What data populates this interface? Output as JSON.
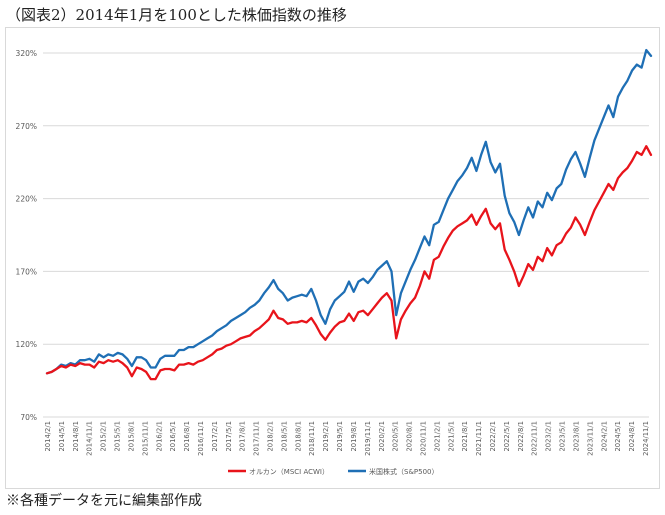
{
  "title": "（図表2）2014年1月を100とした株価指数の推移",
  "footnote": "※各種データを元に編集部作成",
  "chart_data": {
    "type": "line",
    "title": "",
    "xlabel": "",
    "ylabel": "",
    "ylim": [
      70,
      320
    ],
    "y_ticks": [
      70,
      120,
      170,
      220,
      270,
      320
    ],
    "y_tick_labels": [
      "70%",
      "120%",
      "170%",
      "220%",
      "270%",
      "320%"
    ],
    "x_tick_labels": [
      "2014/2/1",
      "2014/5/1",
      "2014/8/1",
      "2014/11/1",
      "2015/2/1",
      "2015/5/1",
      "2015/8/1",
      "2015/11/1",
      "2016/2/1",
      "2016/5/1",
      "2016/8/1",
      "2016/11/1",
      "2017/2/1",
      "2017/5/1",
      "2017/8/1",
      "2017/11/1",
      "2018/2/1",
      "2018/5/1",
      "2018/8/1",
      "2018/11/1",
      "2019/2/1",
      "2019/5/1",
      "2019/8/1",
      "2019/11/1",
      "2020/2/1",
      "2020/5/1",
      "2020/8/1",
      "2020/11/1",
      "2021/2/1",
      "2021/5/1",
      "2021/8/1",
      "2021/11/1",
      "2022/2/1",
      "2022/5/1",
      "2022/8/1",
      "2022/11/1",
      "2023/2/1",
      "2023/5/1",
      "2023/8/1",
      "2023/11/1",
      "2024/2/1",
      "2024/5/1",
      "2024/8/1",
      "2024/11/1"
    ],
    "grid": true,
    "legend_position": "bottom",
    "series": [
      {
        "name": "オルカン（MSCI ACWI）",
        "color": "#e8141b",
        "values": [
          100,
          101,
          103,
          105,
          104,
          106,
          105,
          107,
          106,
          106,
          104,
          108,
          107,
          109,
          108,
          109,
          107,
          104,
          98,
          104,
          103,
          101,
          96,
          96,
          102,
          103,
          103,
          102,
          106,
          106,
          107,
          106,
          108,
          109,
          111,
          113,
          116,
          117,
          119,
          120,
          122,
          124,
          125,
          126,
          129,
          131,
          134,
          137,
          143,
          138,
          137,
          134,
          135,
          135,
          136,
          135,
          138,
          133,
          127,
          123,
          128,
          132,
          135,
          136,
          141,
          136,
          142,
          143,
          140,
          144,
          148,
          152,
          155,
          150,
          124,
          137,
          143,
          148,
          152,
          160,
          170,
          165,
          178,
          180,
          187,
          193,
          198,
          201,
          203,
          205,
          209,
          202,
          208,
          213,
          203,
          199,
          203,
          185,
          178,
          170,
          160,
          167,
          175,
          171,
          180,
          177,
          186,
          181,
          188,
          190,
          196,
          200,
          207,
          202,
          195,
          204,
          212,
          218,
          224,
          230,
          226,
          234,
          238,
          241,
          246,
          252,
          250,
          256,
          250
        ]
      },
      {
        "name": "米国株式（S&P500）",
        "color": "#1f6fb5",
        "values": [
          100,
          101,
          103,
          106,
          105,
          107,
          106,
          109,
          109,
          110,
          108,
          113,
          111,
          113,
          112,
          114,
          113,
          110,
          105,
          111,
          111,
          109,
          104,
          104,
          110,
          112,
          112,
          112,
          116,
          116,
          118,
          118,
          120,
          122,
          124,
          126,
          129,
          131,
          133,
          136,
          138,
          140,
          142,
          145,
          147,
          150,
          155,
          159,
          164,
          158,
          155,
          150,
          152,
          153,
          154,
          153,
          158,
          150,
          140,
          134,
          144,
          150,
          153,
          156,
          163,
          156,
          163,
          165,
          162,
          166,
          171,
          174,
          177,
          170,
          140,
          155,
          163,
          171,
          178,
          186,
          194,
          188,
          202,
          204,
          212,
          220,
          226,
          232,
          236,
          241,
          248,
          239,
          250,
          259,
          245,
          238,
          244,
          222,
          210,
          204,
          195,
          205,
          214,
          207,
          218,
          214,
          224,
          219,
          227,
          230,
          240,
          247,
          252,
          244,
          235,
          248,
          260,
          268,
          276,
          284,
          276,
          290,
          296,
          301,
          308,
          312,
          310,
          322,
          318
        ]
      }
    ]
  }
}
